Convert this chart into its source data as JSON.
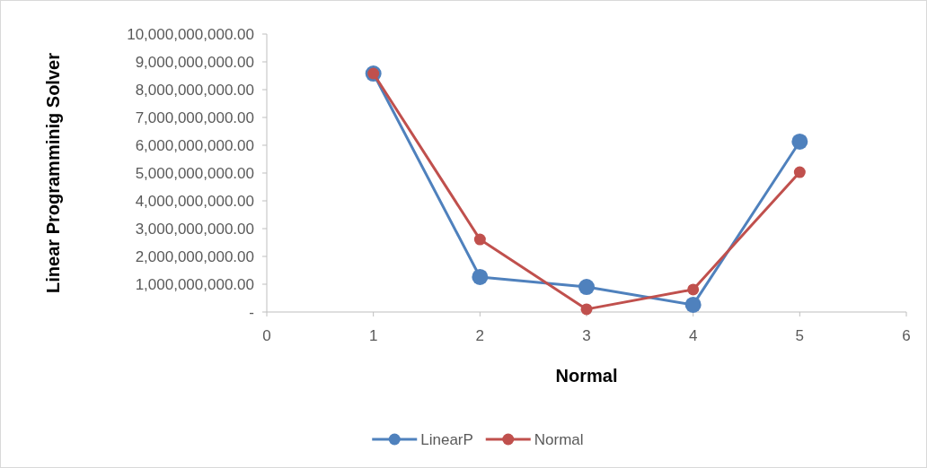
{
  "chart_data": {
    "type": "line",
    "xlabel": "Normal",
    "ylabel": "Linear Programminig Solver",
    "x": [
      1,
      2,
      3,
      4,
      5
    ],
    "series": [
      {
        "name": "LinearP",
        "color": "#4f81bd",
        "values": [
          8580000000,
          1260000000,
          900000000,
          260000000,
          6130000000
        ]
      },
      {
        "name": "Normal",
        "color": "#c0504d",
        "values": [
          8580000000,
          2610000000,
          100000000,
          810000000,
          5030000000
        ]
      }
    ],
    "xlim": [
      0,
      6
    ],
    "xticks": [
      0,
      1,
      2,
      3,
      4,
      5,
      6
    ],
    "ylim": [
      0,
      10000000000
    ],
    "yticks": [
      {
        "value": 0,
        "label": "-"
      },
      {
        "value": 1000000000,
        "label": "1,000,000,000.00"
      },
      {
        "value": 2000000000,
        "label": "2,000,000,000.00"
      },
      {
        "value": 3000000000,
        "label": "3,000,000,000.00"
      },
      {
        "value": 4000000000,
        "label": "4,000,000,000.00"
      },
      {
        "value": 5000000000,
        "label": "5,000,000,000.00"
      },
      {
        "value": 6000000000,
        "label": "6,000,000,000.00"
      },
      {
        "value": 7000000000,
        "label": "7,000,000,000.00"
      },
      {
        "value": 8000000000,
        "label": "8,000,000,000.00"
      },
      {
        "value": 9000000000,
        "label": "9,000,000,000.00"
      },
      {
        "value": 10000000000,
        "label": "10,000,000,000.00"
      }
    ],
    "grid": false,
    "legend": "bottom",
    "marker": "circle",
    "line_style": "solid"
  }
}
